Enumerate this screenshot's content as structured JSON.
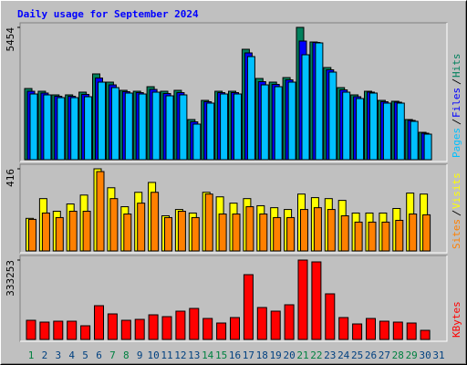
{
  "chart_data": [
    {
      "type": "bar",
      "title": "Daily usage for September 2024",
      "categories": [
        "1",
        "2",
        "3",
        "4",
        "5",
        "6",
        "7",
        "8",
        "9",
        "10",
        "11",
        "12",
        "13",
        "14",
        "15",
        "16",
        "17",
        "18",
        "19",
        "20",
        "21",
        "22",
        "23",
        "24",
        "25",
        "26",
        "27",
        "28",
        "29",
        "30",
        "31"
      ],
      "category_colors": [
        "#008040",
        "#004080",
        "#004080",
        "#004080",
        "#004080",
        "#004080",
        "#008040",
        "#008040",
        "#004080",
        "#004080",
        "#004080",
        "#004080",
        "#004080",
        "#008040",
        "#008040",
        "#004080",
        "#004080",
        "#004080",
        "#004080",
        "#004080",
        "#008040",
        "#008040",
        "#004080",
        "#004080",
        "#004080",
        "#004080",
        "#004080",
        "#008040",
        "#008040",
        "#004080",
        "#004080"
      ],
      "ylim": [
        0,
        5454
      ],
      "yticks": [
        5454
      ],
      "series": [
        {
          "name": "Hits",
          "color": "#00805c",
          "values": [
            2934,
            2821,
            2671,
            2671,
            2784,
            3536,
            3197,
            2859,
            2821,
            3009,
            2821,
            2859,
            1655,
            2445,
            2821,
            2821,
            4551,
            3348,
            3197,
            3385,
            5454,
            4852,
            3799,
            2971,
            2671,
            2821,
            2445,
            2408,
            1655,
            1128,
            null
          ]
        },
        {
          "name": "Files",
          "color": "#0000ff",
          "values": [
            2821,
            2746,
            2615,
            2615,
            2690,
            3367,
            3084,
            2803,
            2765,
            2896,
            2727,
            2765,
            1561,
            2389,
            2765,
            2765,
            4401,
            3216,
            3103,
            3291,
            4890,
            4833,
            3705,
            2877,
            2596,
            2784,
            2389,
            2370,
            1618,
            1091,
            null
          ]
        },
        {
          "name": "Pages",
          "color": "#00c0ff",
          "values": [
            2708,
            2671,
            2558,
            2558,
            2595,
            3197,
            2971,
            2746,
            2708,
            2783,
            2633,
            2671,
            1467,
            2332,
            2708,
            2708,
            4250,
            3084,
            3009,
            3197,
            4325,
            4814,
            3611,
            2783,
            2520,
            2746,
            2332,
            2332,
            1580,
            1053,
            null
          ]
        }
      ]
    },
    {
      "type": "bar",
      "ylim": [
        0,
        416
      ],
      "yticks": [
        416
      ],
      "series": [
        {
          "name": "Visits",
          "color": "#ffff00",
          "values": [
            165,
            265,
            201,
            238,
            283,
            416,
            320,
            224,
            297,
            347,
            178,
            210,
            192,
            297,
            274,
            242,
            265,
            229,
            219,
            210,
            288,
            270,
            265,
            256,
            192,
            192,
            192,
            215,
            293,
            288,
            null
          ]
        },
        {
          "name": "Sites",
          "color": "#ff8000",
          "values": [
            160,
            192,
            169,
            201,
            201,
            402,
            265,
            187,
            242,
            297,
            169,
            201,
            169,
            288,
            187,
            187,
            224,
            187,
            169,
            169,
            210,
            219,
            210,
            178,
            146,
            146,
            146,
            155,
            187,
            183,
            null
          ]
        }
      ]
    },
    {
      "type": "bar",
      "ylim": [
        0,
        333253
      ],
      "yticks": [
        333253
      ],
      "series": [
        {
          "name": "KBytes",
          "color": "#ff0000",
          "values": [
            80441,
            72780,
            76610,
            76610,
            57457,
            141728,
            107256,
            80441,
            84271,
            103425,
            95763,
            118744,
            130235,
            88102,
            68949,
            91932,
            271965,
            134066,
            118744,
            145560,
            333253,
            325592,
            191525,
            91932,
            65119,
            88102,
            76610,
            72780,
            68949,
            38305,
            null
          ]
        }
      ]
    }
  ]
}
